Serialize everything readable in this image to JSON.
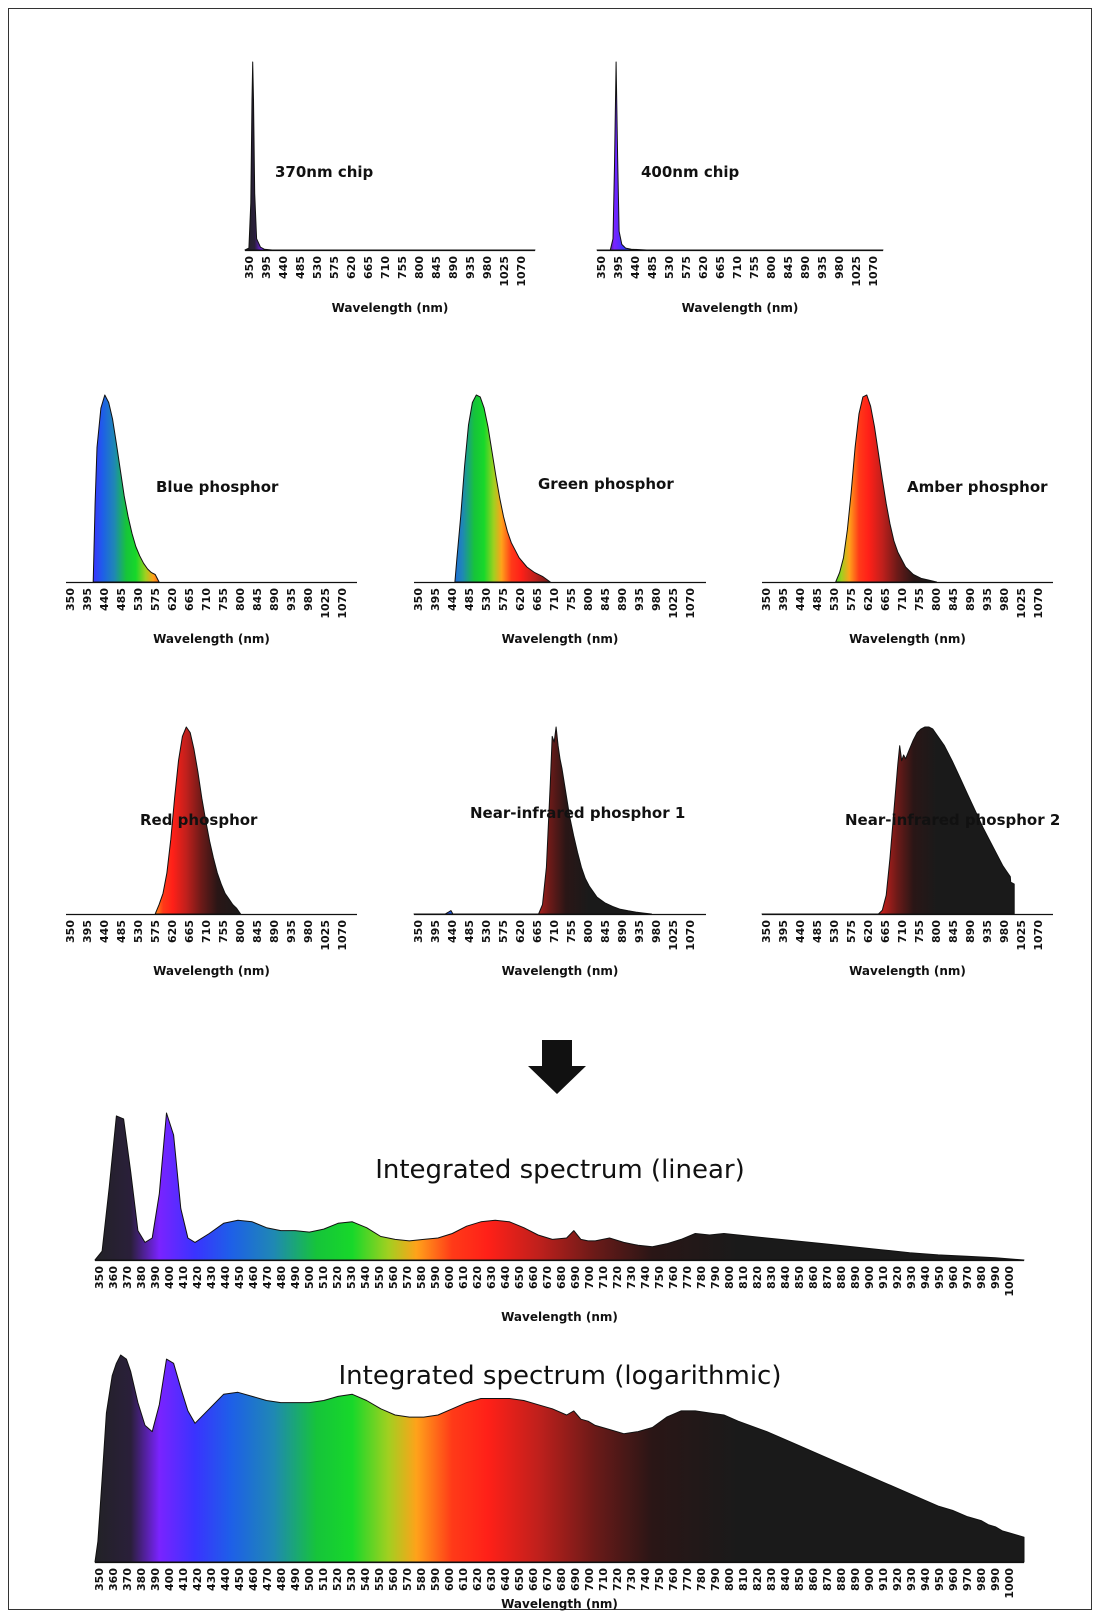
{
  "xlabel": "Wavelength (nm)",
  "colors": {
    "spectrum_stops": [
      {
        "nm": 350,
        "c": "#222226"
      },
      {
        "nm": 375,
        "c": "#2a1f3a"
      },
      {
        "nm": 395,
        "c": "#7a23ff"
      },
      {
        "nm": 420,
        "c": "#3a33ff"
      },
      {
        "nm": 445,
        "c": "#1e5fe8"
      },
      {
        "nm": 475,
        "c": "#1f88b4"
      },
      {
        "nm": 505,
        "c": "#16c43a"
      },
      {
        "nm": 530,
        "c": "#17d82a"
      },
      {
        "nm": 555,
        "c": "#a0d020"
      },
      {
        "nm": 575,
        "c": "#ffa21a"
      },
      {
        "nm": 600,
        "c": "#ff3a18"
      },
      {
        "nm": 625,
        "c": "#ff2018"
      },
      {
        "nm": 660,
        "c": "#c0201c"
      },
      {
        "nm": 700,
        "c": "#6a1a18"
      },
      {
        "nm": 740,
        "c": "#2a1616"
      },
      {
        "nm": 800,
        "c": "#1a1a1a"
      },
      {
        "nm": 1100,
        "c": "#1a1a1a"
      }
    ],
    "arrow": "#111111"
  },
  "small_ticks": [
    "350",
    "395",
    "440",
    "485",
    "530",
    "575",
    "620",
    "665",
    "710",
    "755",
    "800",
    "845",
    "890",
    "935",
    "980",
    "1025",
    "1070"
  ],
  "chart_data": [
    {
      "type": "area",
      "label": "370nm chip",
      "xlim": [
        350,
        1100
      ],
      "x": [
        350,
        360,
        365,
        368,
        370,
        372,
        375,
        380,
        390,
        400,
        420,
        1100
      ],
      "y": [
        0,
        0.01,
        0.25,
        0.8,
        1.0,
        0.8,
        0.3,
        0.06,
        0.015,
        0.004,
        0,
        0
      ]
    },
    {
      "type": "area",
      "label": "400nm chip",
      "xlim": [
        350,
        1100
      ],
      "x": [
        350,
        385,
        392,
        396,
        400,
        404,
        408,
        415,
        425,
        440,
        480,
        1100
      ],
      "y": [
        0,
        0,
        0.06,
        0.45,
        1.0,
        0.5,
        0.1,
        0.03,
        0.01,
        0.004,
        0,
        0
      ]
    },
    {
      "type": "area",
      "label": "Blue phosphor",
      "xlim": [
        350,
        1100
      ],
      "x": [
        420,
        425,
        430,
        440,
        450,
        460,
        470,
        480,
        490,
        500,
        510,
        520,
        530,
        540,
        550,
        560,
        570,
        580,
        590
      ],
      "y": [
        0,
        0.42,
        0.72,
        0.93,
        1.0,
        0.96,
        0.87,
        0.74,
        0.6,
        0.46,
        0.35,
        0.26,
        0.19,
        0.14,
        0.1,
        0.07,
        0.05,
        0.04,
        0
      ]
    },
    {
      "type": "area",
      "label": "Green phosphor",
      "xlim": [
        350,
        1100
      ],
      "x": [
        455,
        460,
        470,
        480,
        490,
        500,
        510,
        520,
        530,
        540,
        550,
        560,
        570,
        580,
        590,
        600,
        620,
        640,
        660,
        680,
        700
      ],
      "y": [
        0,
        0.12,
        0.35,
        0.62,
        0.84,
        0.96,
        1.0,
        0.99,
        0.93,
        0.83,
        0.7,
        0.57,
        0.45,
        0.35,
        0.27,
        0.21,
        0.13,
        0.08,
        0.05,
        0.03,
        0
      ]
    },
    {
      "type": "area",
      "label": "Amber phosphor",
      "xlim": [
        350,
        1100
      ],
      "x": [
        540,
        550,
        560,
        570,
        580,
        590,
        600,
        610,
        620,
        630,
        640,
        650,
        660,
        670,
        680,
        690,
        700,
        720,
        740,
        760,
        780,
        800
      ],
      "y": [
        0,
        0.05,
        0.13,
        0.28,
        0.48,
        0.72,
        0.9,
        0.99,
        1.0,
        0.94,
        0.83,
        0.69,
        0.55,
        0.42,
        0.31,
        0.22,
        0.16,
        0.08,
        0.04,
        0.02,
        0.01,
        0
      ]
    },
    {
      "type": "area",
      "label": "Red phosphor",
      "xlim": [
        350,
        1100
      ],
      "x": [
        580,
        590,
        600,
        610,
        620,
        630,
        640,
        650,
        660,
        670,
        680,
        690,
        700,
        710,
        720,
        730,
        740,
        750,
        760,
        770,
        780,
        790,
        800
      ],
      "y": [
        0,
        0.05,
        0.11,
        0.22,
        0.4,
        0.62,
        0.82,
        0.95,
        1.0,
        0.97,
        0.88,
        0.76,
        0.62,
        0.5,
        0.39,
        0.3,
        0.22,
        0.16,
        0.11,
        0.08,
        0.05,
        0.03,
        0
      ]
    },
    {
      "type": "area",
      "label": "Near-infrared phosphor 1",
      "xlim": [
        350,
        1100
      ],
      "x": [
        350,
        430,
        440,
        445,
        450,
        670,
        680,
        690,
        700,
        705,
        710,
        715,
        720,
        725,
        730,
        740,
        750,
        760,
        770,
        780,
        790,
        800,
        820,
        840,
        860,
        880,
        900,
        920,
        940,
        960
      ],
      "y": [
        0,
        0,
        0.012,
        0.018,
        0,
        0,
        0.05,
        0.25,
        0.7,
        0.95,
        0.92,
        1.0,
        0.9,
        0.83,
        0.78,
        0.65,
        0.52,
        0.42,
        0.33,
        0.25,
        0.19,
        0.15,
        0.09,
        0.06,
        0.04,
        0.025,
        0.017,
        0.01,
        0.005,
        0
      ]
    },
    {
      "type": "area",
      "label": "Near-infrared phosphor 2",
      "xlim": [
        350,
        1100
      ],
      "x": [
        350,
        650,
        660,
        670,
        680,
        690,
        700,
        705,
        710,
        715,
        720,
        730,
        740,
        750,
        760,
        770,
        780,
        790,
        800,
        820,
        840,
        860,
        880,
        900,
        920,
        940,
        960,
        970,
        980,
        990,
        991,
        1000,
        1000
      ],
      "y": [
        0,
        0,
        0.02,
        0.1,
        0.3,
        0.55,
        0.8,
        0.9,
        0.82,
        0.85,
        0.83,
        0.88,
        0.93,
        0.97,
        0.99,
        1.0,
        1.0,
        0.99,
        0.96,
        0.9,
        0.82,
        0.73,
        0.64,
        0.55,
        0.46,
        0.38,
        0.3,
        0.26,
        0.23,
        0.2,
        0.17,
        0.16,
        0
      ]
    },
    {
      "type": "area",
      "label": "Integrated spectrum (linear)",
      "xlim": [
        350,
        1000
      ],
      "x": [
        350,
        355,
        360,
        365,
        370,
        375,
        380,
        385,
        390,
        395,
        400,
        405,
        410,
        415,
        420,
        430,
        440,
        450,
        460,
        470,
        480,
        490,
        500,
        510,
        520,
        530,
        540,
        550,
        560,
        570,
        580,
        590,
        600,
        610,
        620,
        630,
        640,
        650,
        660,
        670,
        680,
        685,
        690,
        695,
        700,
        710,
        720,
        730,
        740,
        750,
        760,
        770,
        780,
        790,
        800,
        820,
        840,
        860,
        880,
        900,
        920,
        940,
        960,
        980,
        1000
      ],
      "y": [
        0.0,
        0.06,
        0.5,
        0.98,
        0.96,
        0.6,
        0.2,
        0.12,
        0.15,
        0.45,
        1.0,
        0.85,
        0.35,
        0.15,
        0.12,
        0.18,
        0.25,
        0.27,
        0.26,
        0.22,
        0.2,
        0.2,
        0.19,
        0.21,
        0.25,
        0.26,
        0.22,
        0.16,
        0.14,
        0.13,
        0.14,
        0.15,
        0.18,
        0.23,
        0.26,
        0.27,
        0.26,
        0.22,
        0.17,
        0.14,
        0.15,
        0.2,
        0.14,
        0.13,
        0.13,
        0.15,
        0.12,
        0.1,
        0.09,
        0.11,
        0.14,
        0.18,
        0.17,
        0.18,
        0.17,
        0.15,
        0.13,
        0.11,
        0.09,
        0.07,
        0.05,
        0.035,
        0.025,
        0.015,
        0.0
      ]
    },
    {
      "type": "area",
      "label": "Integrated spectrum (logarithmic)",
      "xlim": [
        350,
        1000
      ],
      "x": [
        350,
        352,
        355,
        358,
        362,
        365,
        368,
        372,
        375,
        380,
        385,
        390,
        395,
        400,
        405,
        410,
        415,
        420,
        430,
        440,
        450,
        460,
        470,
        480,
        490,
        500,
        510,
        520,
        530,
        540,
        550,
        560,
        570,
        580,
        590,
        600,
        610,
        620,
        630,
        640,
        650,
        660,
        670,
        680,
        685,
        690,
        695,
        700,
        710,
        720,
        730,
        740,
        750,
        760,
        770,
        780,
        790,
        800,
        820,
        840,
        860,
        880,
        900,
        920,
        940,
        950,
        960,
        970,
        975,
        980,
        985,
        990,
        995,
        1000,
        1000
      ],
      "y": [
        0,
        0.1,
        0.4,
        0.72,
        0.9,
        0.96,
        1.0,
        0.98,
        0.92,
        0.77,
        0.66,
        0.63,
        0.76,
        0.98,
        0.96,
        0.84,
        0.73,
        0.67,
        0.74,
        0.81,
        0.82,
        0.8,
        0.78,
        0.77,
        0.77,
        0.77,
        0.78,
        0.8,
        0.81,
        0.78,
        0.74,
        0.71,
        0.7,
        0.7,
        0.71,
        0.74,
        0.77,
        0.79,
        0.79,
        0.79,
        0.78,
        0.76,
        0.74,
        0.71,
        0.73,
        0.69,
        0.68,
        0.66,
        0.64,
        0.62,
        0.63,
        0.65,
        0.7,
        0.73,
        0.73,
        0.72,
        0.71,
        0.68,
        0.63,
        0.57,
        0.51,
        0.45,
        0.39,
        0.33,
        0.27,
        0.25,
        0.22,
        0.2,
        0.18,
        0.17,
        0.15,
        0.14,
        0.13,
        0.12,
        0
      ]
    }
  ],
  "wide_ticks": [
    "350",
    "360",
    "370",
    "380",
    "390",
    "400",
    "410",
    "420",
    "430",
    "440",
    "450",
    "460",
    "470",
    "480",
    "490",
    "500",
    "510",
    "520",
    "530",
    "540",
    "550",
    "560",
    "570",
    "580",
    "590",
    "600",
    "610",
    "620",
    "630",
    "640",
    "650",
    "660",
    "670",
    "680",
    "690",
    "700",
    "710",
    "720",
    "730",
    "740",
    "750",
    "760",
    "770",
    "780",
    "790",
    "800",
    "810",
    "820",
    "830",
    "840",
    "850",
    "860",
    "870",
    "880",
    "890",
    "900",
    "910",
    "920",
    "930",
    "940",
    "950",
    "960",
    "970",
    "980",
    "990",
    "1000"
  ]
}
